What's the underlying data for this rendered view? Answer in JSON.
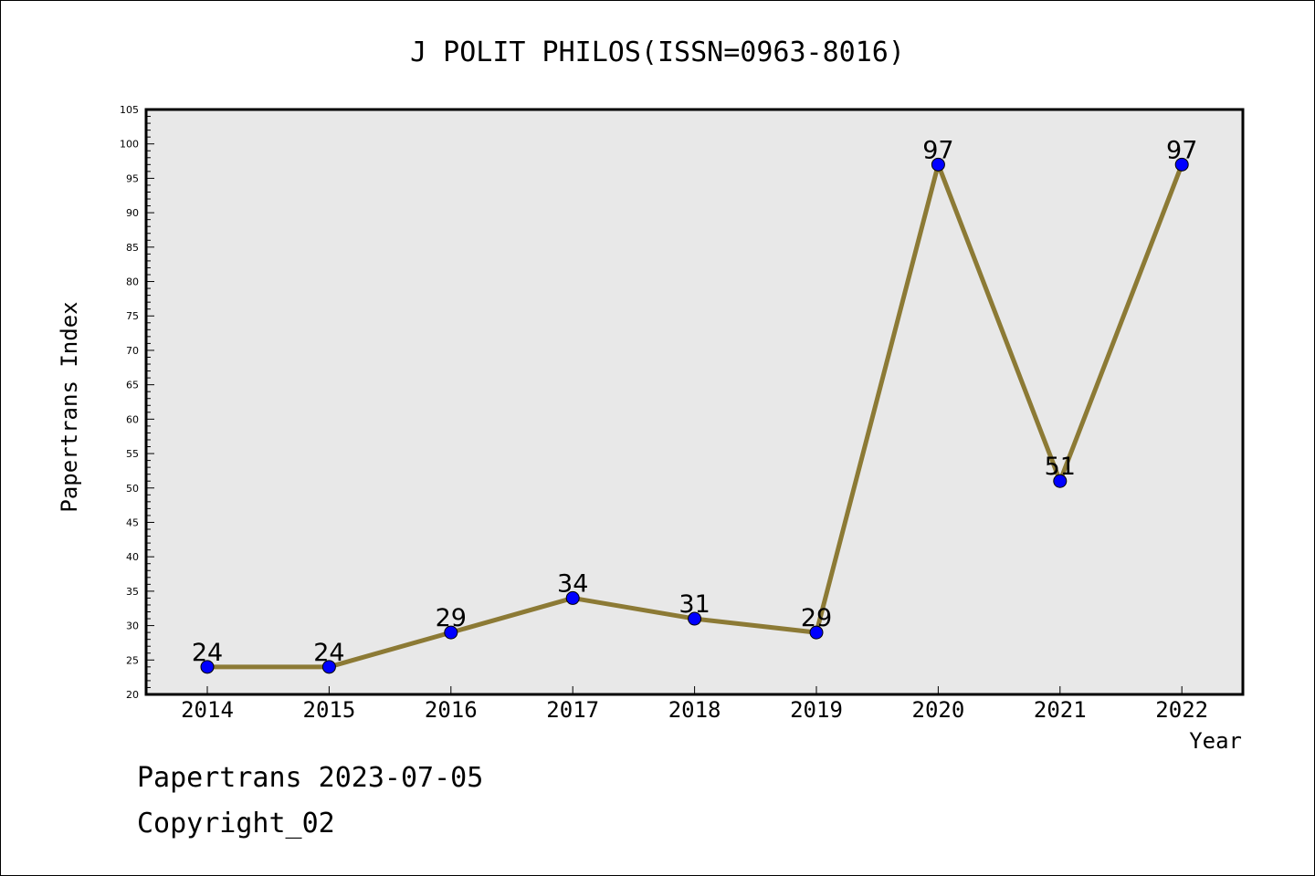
{
  "chart_data": {
    "type": "line",
    "title": "J POLIT PHILOS(ISSN=0963-8016)",
    "xlabel": "Year",
    "ylabel": "Papertrans Index",
    "categories": [
      "2014",
      "2015",
      "2016",
      "2017",
      "2018",
      "2019",
      "2020",
      "2021",
      "2022"
    ],
    "series": [
      {
        "values": [
          24,
          24,
          29,
          34,
          31,
          29,
          97,
          51,
          97
        ]
      }
    ],
    "ylim": [
      20,
      105
    ],
    "yticks": [
      20,
      25,
      30,
      35,
      40,
      45,
      50,
      55,
      60,
      65,
      70,
      75,
      80,
      85,
      90,
      95,
      100,
      105
    ],
    "grid": false,
    "legend": "none",
    "line_color": "#8c7a35",
    "marker_color": "#0000ff",
    "plot_background": "#e8e8e8"
  },
  "footer": {
    "date_line": "Papertrans 2023-07-05",
    "copyright": "Copyright_02"
  }
}
